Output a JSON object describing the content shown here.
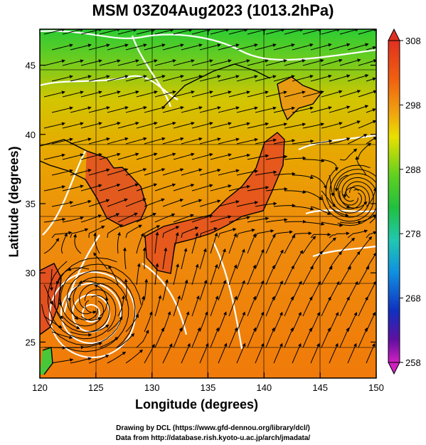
{
  "title": "MSM 03Z04Aug2023 (1013.2hPa)",
  "xlabel": "Longitude (degrees)",
  "ylabel": "Latitude  (degrees)",
  "credit_line1": "Drawing by DCL (https://www.gfd-dennou.org/library/dcl/)",
  "credit_line2": "Data from http://database.rish.kyoto-u.ac.jp/arch/jmadata/",
  "x_ticks": [
    "120",
    "125",
    "130",
    "135",
    "140",
    "145",
    "150"
  ],
  "y_ticks": [
    "25",
    "30",
    "35",
    "40",
    "45"
  ],
  "colorbar_ticks": [
    "308",
    "298",
    "288",
    "278",
    "268",
    "258"
  ],
  "chart_data": {
    "type": "heatmap",
    "title": "MSM 03Z04Aug2023 (1013.2hPa)",
    "xlabel": "Longitude (degrees)",
    "ylabel": "Latitude  (degrees)",
    "xlim": [
      120,
      150
    ],
    "ylim": [
      22.4,
      47.6
    ],
    "colorbar_range": [
      258,
      308
    ],
    "colorbar_ticks": [
      258,
      268,
      278,
      288,
      298,
      308
    ],
    "colors": {
      "cold_north": "#3ccc2a",
      "mid": "#e0b800",
      "warm": "#f08a10",
      "hot": "#e8421a",
      "coast": "#000000",
      "contour": "#ffffff",
      "streamline": "#000000"
    },
    "vortices": [
      {
        "lon": 124.6,
        "lat": 27.7
      },
      {
        "lon": 148.0,
        "lat": 35.6
      }
    ]
  }
}
